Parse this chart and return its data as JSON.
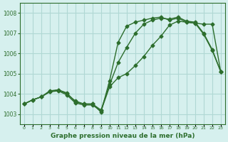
{
  "title": "Graphe pression niveau de la mer (hPa)",
  "xlabel_ticks": [
    "0",
    "1",
    "2",
    "3",
    "4",
    "5",
    "6",
    "7",
    "8",
    "9",
    "10",
    "11",
    "12",
    "13",
    "14",
    "15",
    "16",
    "17",
    "18",
    "19",
    "20",
    "21",
    "22",
    "23"
  ],
  "ylim": [
    1002.5,
    1008.5
  ],
  "xlim": [
    -0.5,
    23.5
  ],
  "yticks": [
    1003,
    1004,
    1005,
    1006,
    1007,
    1008
  ],
  "bg_color": "#d6f0ee",
  "grid_color": "#b0d8d4",
  "line_color": "#2d6e2d",
  "line1_x": [
    0,
    1,
    2,
    3,
    4,
    5,
    6,
    7,
    8,
    9,
    10,
    11,
    12,
    13,
    14,
    15,
    16,
    17,
    18,
    19,
    20,
    21,
    22,
    23
  ],
  "line1_y": [
    1003.5,
    1003.7,
    1003.85,
    1004.1,
    1004.15,
    1003.95,
    1003.55,
    1003.45,
    1003.45,
    1003.15,
    1004.35,
    1004.8,
    1005.0,
    1005.4,
    1005.85,
    1006.4,
    1006.85,
    1007.4,
    1007.6,
    1007.55,
    1007.5,
    1007.45,
    1007.45,
    1005.1
  ],
  "line2_x": [
    0,
    1,
    2,
    3,
    4,
    5,
    6,
    7,
    8,
    9,
    10,
    11,
    12,
    13,
    14,
    15,
    16,
    17,
    18,
    19,
    20,
    21,
    22,
    23
  ],
  "line2_y": [
    1003.5,
    1003.7,
    1003.85,
    1004.1,
    1004.2,
    1004.05,
    1003.6,
    1003.5,
    1003.5,
    1003.2,
    1004.45,
    1005.55,
    1006.3,
    1007.0,
    1007.45,
    1007.65,
    1007.75,
    1007.7,
    1007.8,
    1007.6,
    1007.55,
    1007.0,
    1006.2,
    1005.1
  ],
  "line3_x": [
    0,
    1,
    2,
    3,
    4,
    5,
    6,
    7,
    8,
    9,
    10,
    11,
    12,
    13,
    14,
    15,
    16,
    17,
    18,
    19,
    20,
    21,
    22,
    23
  ],
  "line3_y": [
    1003.5,
    1003.7,
    1003.85,
    1004.15,
    1004.2,
    1004.0,
    1003.65,
    1003.5,
    1003.5,
    1003.1,
    1004.65,
    1006.55,
    1007.35,
    1007.55,
    1007.65,
    1007.75,
    1007.8,
    1007.65,
    1007.75,
    1007.55,
    1007.5,
    1006.95,
    1006.15,
    1005.1
  ]
}
